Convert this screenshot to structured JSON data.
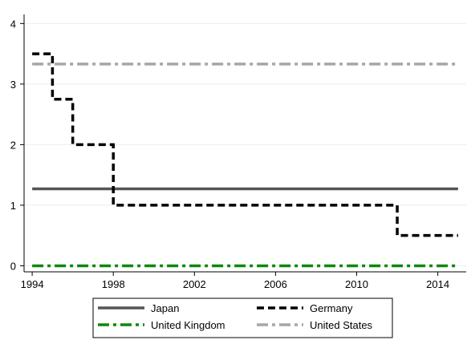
{
  "chart_data": {
    "type": "line",
    "title": "",
    "xlabel": "",
    "ylabel": "",
    "xlim": [
      1993.6,
      2015.4
    ],
    "ylim": [
      -0.1,
      4.15
    ],
    "x_ticks": [
      "1994",
      "1998",
      "2002",
      "2006",
      "2010",
      "2014"
    ],
    "y_ticks": [
      "0",
      "1",
      "2",
      "3",
      "4"
    ],
    "grid": true,
    "legend_position": "bottom",
    "series": [
      {
        "name": "Japan",
        "color": "#555555",
        "style": "solid",
        "step": true,
        "points": [
          [
            1994,
            1.27
          ],
          [
            2015,
            1.27
          ]
        ]
      },
      {
        "name": "Germany",
        "color": "#000000",
        "style": "dashed",
        "step": true,
        "points": [
          [
            1994,
            3.5
          ],
          [
            1995,
            2.75
          ],
          [
            1996,
            2.0
          ],
          [
            1998,
            1.0
          ],
          [
            2012,
            0.5
          ],
          [
            2015,
            0.5
          ]
        ]
      },
      {
        "name": "United Kingdom",
        "color": "#0b8a0b",
        "style": "dashdot",
        "step": true,
        "points": [
          [
            1994,
            0.0
          ],
          [
            2015,
            0.0
          ]
        ]
      },
      {
        "name": "United States",
        "color": "#a6a6a6",
        "style": "dashdot",
        "step": true,
        "points": [
          [
            1994,
            3.33
          ],
          [
            2015,
            3.33
          ]
        ]
      }
    ]
  }
}
